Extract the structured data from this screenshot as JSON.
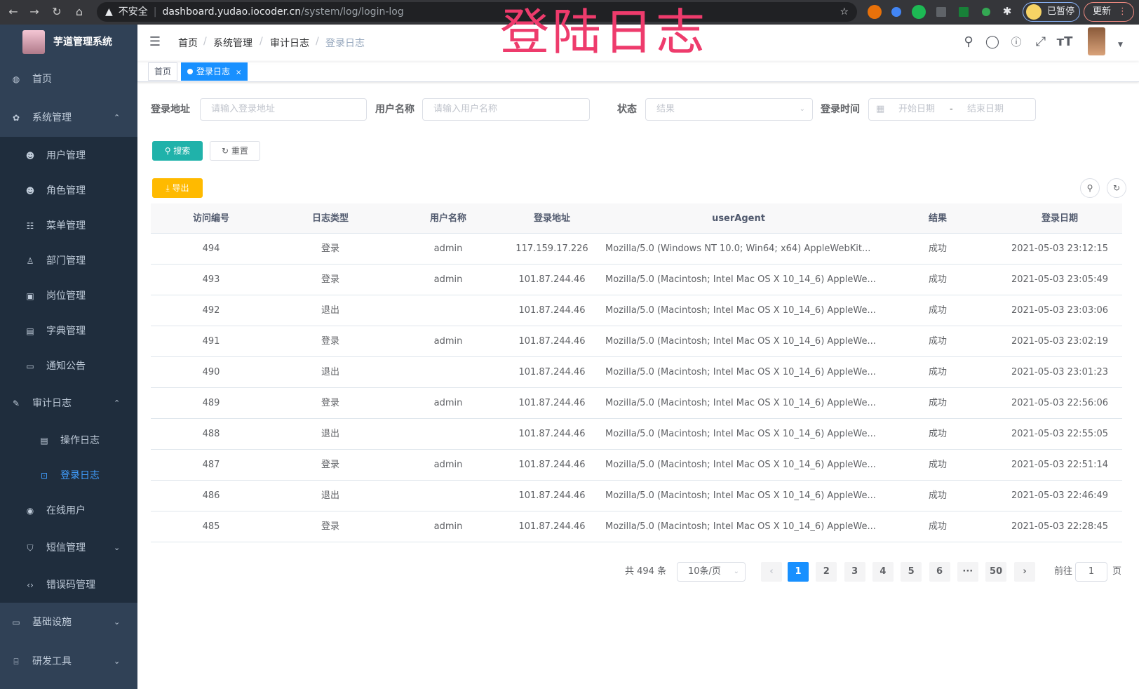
{
  "browser": {
    "security": "不安全",
    "url_host": "dashboard.yudao.iocoder.cn",
    "url_path": "/system/log/login-log",
    "profile_label": "已暂停",
    "update_label": "更新"
  },
  "overlay_title": "登陆日志",
  "sidebar": {
    "app_title": "芋道管理系统",
    "items": [
      {
        "label": "首页",
        "icon": "dashboard-icon"
      },
      {
        "label": "系统管理",
        "icon": "gear-icon",
        "arrow": "⌃"
      },
      {
        "label": "用户管理",
        "icon": "user-icon"
      },
      {
        "label": "角色管理",
        "icon": "peoples-icon"
      },
      {
        "label": "菜单管理",
        "icon": "tree-table-icon"
      },
      {
        "label": "部门管理",
        "icon": "tree-icon"
      },
      {
        "label": "岗位管理",
        "icon": "post-icon"
      },
      {
        "label": "字典管理",
        "icon": "dict-icon"
      },
      {
        "label": "通知公告",
        "icon": "message-icon"
      },
      {
        "label": "审计日志",
        "icon": "log-icon",
        "arrow": "⌃"
      },
      {
        "label": "操作日志",
        "icon": "form-icon"
      },
      {
        "label": "登录日志",
        "icon": "logininfor-icon",
        "active": true
      },
      {
        "label": "在线用户",
        "icon": "online-icon"
      },
      {
        "label": "短信管理",
        "icon": "shield-icon",
        "arrow": "⌄"
      },
      {
        "label": "错误码管理",
        "icon": "code-icon"
      },
      {
        "label": "基础设施",
        "icon": "monitor-icon",
        "arrow": "⌄"
      },
      {
        "label": "研发工具",
        "icon": "tool-icon",
        "arrow": "⌄"
      }
    ]
  },
  "header": {
    "breadcrumb": [
      "首页",
      "系统管理",
      "审计日志",
      "登录日志"
    ]
  },
  "tags": {
    "home": "首页",
    "active": "登录日志",
    "close": "×"
  },
  "filters": {
    "address_label": "登录地址",
    "address_placeholder": "请输入登录地址",
    "username_label": "用户名称",
    "username_placeholder": "请输入用户名称",
    "status_label": "状态",
    "status_placeholder": "结果",
    "time_label": "登录时间",
    "start_placeholder": "开始日期",
    "range_sep": "-",
    "end_placeholder": "结束日期",
    "search_label": "搜索",
    "reset_label": "重置",
    "export_label": "导出"
  },
  "table": {
    "columns": [
      "访问编号",
      "日志类型",
      "用户名称",
      "登录地址",
      "userAgent",
      "结果",
      "登录日期"
    ],
    "rows": [
      [
        "494",
        "登录",
        "admin",
        "117.159.17.226",
        "Mozilla/5.0 (Windows NT 10.0; Win64; x64) AppleWebKit...",
        "成功",
        "2021-05-03 23:12:15"
      ],
      [
        "493",
        "登录",
        "admin",
        "101.87.244.46",
        "Mozilla/5.0 (Macintosh; Intel Mac OS X 10_14_6) AppleWe...",
        "成功",
        "2021-05-03 23:05:49"
      ],
      [
        "492",
        "退出",
        "",
        "101.87.244.46",
        "Mozilla/5.0 (Macintosh; Intel Mac OS X 10_14_6) AppleWe...",
        "成功",
        "2021-05-03 23:03:06"
      ],
      [
        "491",
        "登录",
        "admin",
        "101.87.244.46",
        "Mozilla/5.0 (Macintosh; Intel Mac OS X 10_14_6) AppleWe...",
        "成功",
        "2021-05-03 23:02:19"
      ],
      [
        "490",
        "退出",
        "",
        "101.87.244.46",
        "Mozilla/5.0 (Macintosh; Intel Mac OS X 10_14_6) AppleWe...",
        "成功",
        "2021-05-03 23:01:23"
      ],
      [
        "489",
        "登录",
        "admin",
        "101.87.244.46",
        "Mozilla/5.0 (Macintosh; Intel Mac OS X 10_14_6) AppleWe...",
        "成功",
        "2021-05-03 22:56:06"
      ],
      [
        "488",
        "退出",
        "",
        "101.87.244.46",
        "Mozilla/5.0 (Macintosh; Intel Mac OS X 10_14_6) AppleWe...",
        "成功",
        "2021-05-03 22:55:05"
      ],
      [
        "487",
        "登录",
        "admin",
        "101.87.244.46",
        "Mozilla/5.0 (Macintosh; Intel Mac OS X 10_14_6) AppleWe...",
        "成功",
        "2021-05-03 22:51:14"
      ],
      [
        "486",
        "退出",
        "",
        "101.87.244.46",
        "Mozilla/5.0 (Macintosh; Intel Mac OS X 10_14_6) AppleWe...",
        "成功",
        "2021-05-03 22:46:49"
      ],
      [
        "485",
        "登录",
        "admin",
        "101.87.244.46",
        "Mozilla/5.0 (Macintosh; Intel Mac OS X 10_14_6) AppleWe...",
        "成功",
        "2021-05-03 22:28:45"
      ]
    ]
  },
  "pagination": {
    "total": "共 494 条",
    "page_size": "10条/页",
    "pages": [
      "1",
      "2",
      "3",
      "4",
      "5",
      "6",
      "···",
      "50"
    ],
    "current": "1",
    "prev": "‹",
    "next": "›",
    "goto_label": "前往",
    "goto_value": "1",
    "goto_suffix": "页"
  },
  "colors": {
    "sidebar": "#304156",
    "submenu": "#1f2d3d",
    "active": "#409eff",
    "primary": "#1890ff",
    "search": "#20b2aa",
    "export": "#ffba00",
    "overlay": "#ee3b6c"
  }
}
